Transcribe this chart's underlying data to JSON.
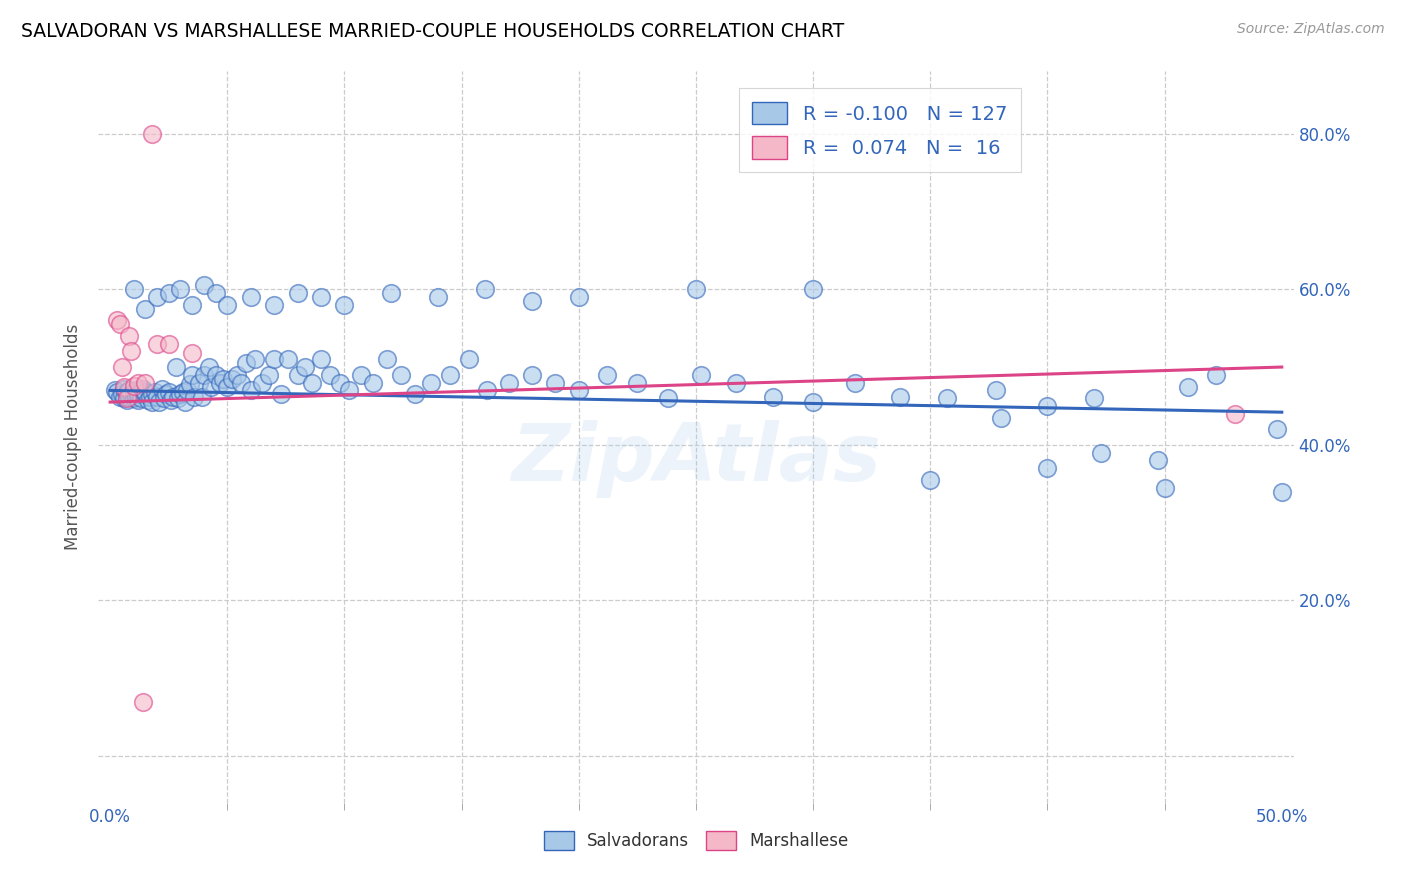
{
  "title": "SALVADORAN VS MARSHALLESE MARRIED-COUPLE HOUSEHOLDS CORRELATION CHART",
  "source": "Source: ZipAtlas.com",
  "ylabel": "Married-couple Households",
  "xlim": [
    -0.005,
    0.505
  ],
  "ylim": [
    -0.06,
    0.88
  ],
  "yticks": [
    0.0,
    0.2,
    0.4,
    0.6,
    0.8
  ],
  "ytick_labels": [
    "",
    "20.0%",
    "40.0%",
    "60.0%",
    "80.0%"
  ],
  "xticks_minor": [
    0.05,
    0.1,
    0.15,
    0.2,
    0.25,
    0.3,
    0.35,
    0.4,
    0.45
  ],
  "blue_color": "#a8c8e8",
  "pink_color": "#f4b8c8",
  "blue_line_color": "#3366bb",
  "pink_line_color": "#dd4488",
  "blue_trend_x": [
    0.0,
    0.5
  ],
  "blue_trend_y": [
    0.47,
    0.442
  ],
  "pink_trend_x": [
    0.0,
    0.5
  ],
  "pink_trend_y": [
    0.455,
    0.5
  ],
  "salvadorans_x": [
    0.002,
    0.003,
    0.004,
    0.005,
    0.006,
    0.006,
    0.007,
    0.007,
    0.008,
    0.008,
    0.009,
    0.01,
    0.01,
    0.011,
    0.011,
    0.012,
    0.012,
    0.013,
    0.014,
    0.015,
    0.015,
    0.016,
    0.017,
    0.018,
    0.018,
    0.019,
    0.02,
    0.021,
    0.022,
    0.023,
    0.024,
    0.025,
    0.026,
    0.027,
    0.028,
    0.029,
    0.03,
    0.031,
    0.032,
    0.033,
    0.034,
    0.035,
    0.036,
    0.038,
    0.039,
    0.04,
    0.042,
    0.043,
    0.045,
    0.047,
    0.048,
    0.05,
    0.052,
    0.054,
    0.056,
    0.058,
    0.06,
    0.062,
    0.065,
    0.068,
    0.07,
    0.073,
    0.076,
    0.08,
    0.083,
    0.086,
    0.09,
    0.094,
    0.098,
    0.102,
    0.107,
    0.112,
    0.118,
    0.124,
    0.13,
    0.137,
    0.145,
    0.153,
    0.161,
    0.17,
    0.18,
    0.19,
    0.2,
    0.212,
    0.225,
    0.238,
    0.252,
    0.267,
    0.283,
    0.3,
    0.318,
    0.337,
    0.357,
    0.378,
    0.4,
    0.423,
    0.447,
    0.472,
    0.498,
    0.01,
    0.015,
    0.02,
    0.025,
    0.03,
    0.035,
    0.04,
    0.045,
    0.05,
    0.06,
    0.07,
    0.08,
    0.09,
    0.1,
    0.12,
    0.14,
    0.16,
    0.18,
    0.2,
    0.25,
    0.3,
    0.35,
    0.4,
    0.45,
    0.5,
    0.38,
    0.42,
    0.46
  ],
  "salvadorans_y": [
    0.47,
    0.468,
    0.462,
    0.465,
    0.46,
    0.472,
    0.458,
    0.468,
    0.462,
    0.47,
    0.465,
    0.46,
    0.468,
    0.462,
    0.47,
    0.458,
    0.465,
    0.46,
    0.472,
    0.465,
    0.468,
    0.458,
    0.462,
    0.465,
    0.455,
    0.468,
    0.462,
    0.455,
    0.472,
    0.46,
    0.465,
    0.468,
    0.458,
    0.462,
    0.5,
    0.46,
    0.465,
    0.468,
    0.455,
    0.47,
    0.478,
    0.49,
    0.462,
    0.48,
    0.462,
    0.49,
    0.5,
    0.475,
    0.49,
    0.48,
    0.485,
    0.475,
    0.485,
    0.49,
    0.48,
    0.505,
    0.47,
    0.51,
    0.48,
    0.49,
    0.51,
    0.465,
    0.51,
    0.49,
    0.5,
    0.48,
    0.51,
    0.49,
    0.48,
    0.47,
    0.49,
    0.48,
    0.51,
    0.49,
    0.465,
    0.48,
    0.49,
    0.51,
    0.47,
    0.48,
    0.49,
    0.48,
    0.47,
    0.49,
    0.48,
    0.46,
    0.49,
    0.48,
    0.462,
    0.455,
    0.48,
    0.462,
    0.46,
    0.47,
    0.45,
    0.39,
    0.38,
    0.49,
    0.42,
    0.6,
    0.575,
    0.59,
    0.595,
    0.6,
    0.58,
    0.605,
    0.595,
    0.58,
    0.59,
    0.58,
    0.595,
    0.59,
    0.58,
    0.595,
    0.59,
    0.6,
    0.585,
    0.59,
    0.6,
    0.6,
    0.355,
    0.37,
    0.345,
    0.34,
    0.435,
    0.46,
    0.475
  ],
  "marshallese_x": [
    0.003,
    0.004,
    0.005,
    0.006,
    0.007,
    0.008,
    0.009,
    0.01,
    0.012,
    0.015,
    0.02,
    0.025,
    0.035,
    0.48,
    0.014,
    0.018
  ],
  "marshallese_y": [
    0.56,
    0.555,
    0.5,
    0.475,
    0.46,
    0.54,
    0.52,
    0.476,
    0.48,
    0.48,
    0.53,
    0.53,
    0.518,
    0.44,
    0.07,
    0.8
  ]
}
